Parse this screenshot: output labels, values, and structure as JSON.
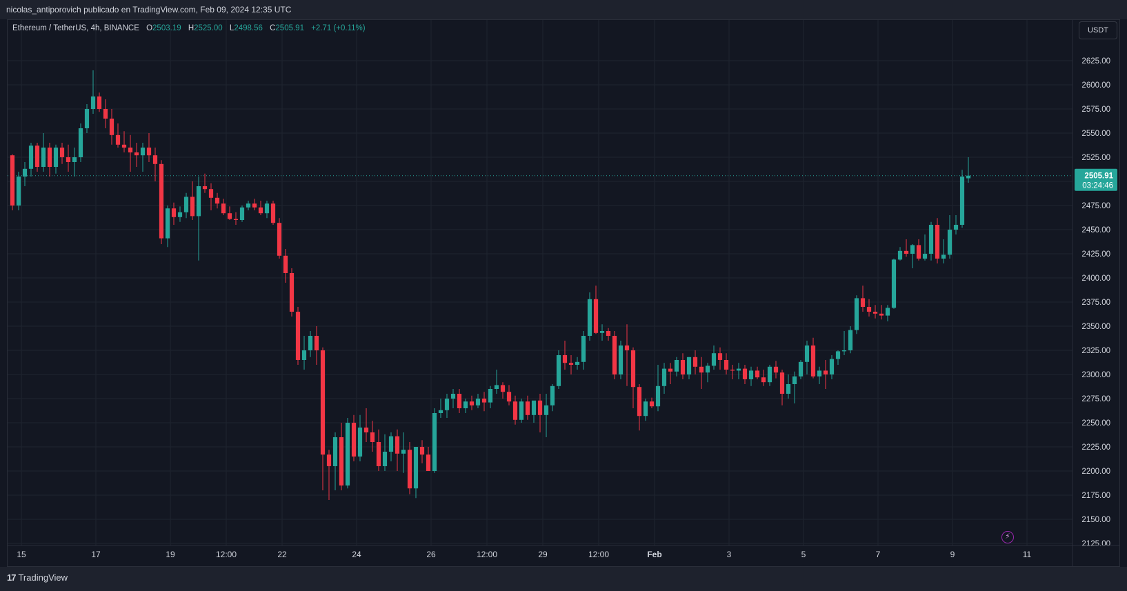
{
  "header": {
    "publisher_line": "nicolas_antiporovich publicado en TradingView.com, Feb 09, 2024 12:35 UTC"
  },
  "legend": {
    "symbol": "Ethereum / TetherUS, 4h, BINANCE",
    "o_label": "O",
    "o_value": "2503.19",
    "h_label": "H",
    "h_value": "2525.00",
    "l_label": "L",
    "l_value": "2498.56",
    "c_label": "C",
    "c_value": "2505.91",
    "change": "+2.71 (+0.11%)"
  },
  "currency_button": "USDT",
  "price_label": {
    "price": "2505.91",
    "countdown": "03:24:46"
  },
  "footer": {
    "brand": "TradingView",
    "logo_mark": "17"
  },
  "colors": {
    "up": "#26a69a",
    "down": "#f23645",
    "background": "#131722",
    "grid": "#1f2430",
    "text": "#d1d4dc"
  },
  "chart_data": {
    "type": "candlestick",
    "symbol": "Ethereum / TetherUS",
    "interval": "4h",
    "exchange": "BINANCE",
    "ylim": [
      2125,
      2650
    ],
    "y_ticks": [
      "2625.00",
      "2600.00",
      "2575.00",
      "2550.00",
      "2525.00",
      "2500.00",
      "2475.00",
      "2450.00",
      "2425.00",
      "2400.00",
      "2375.00",
      "2350.00",
      "2325.00",
      "2300.00",
      "2275.00",
      "2250.00",
      "2225.00",
      "2200.00",
      "2175.00",
      "2150.00",
      "2125.00"
    ],
    "x_ticks": [
      {
        "label": "15",
        "i": 1
      },
      {
        "label": "17",
        "i": 13
      },
      {
        "label": "19",
        "i": 25
      },
      {
        "label": "12:00",
        "i": 34
      },
      {
        "label": "22",
        "i": 43
      },
      {
        "label": "24",
        "i": 55
      },
      {
        "label": "26",
        "i": 67
      },
      {
        "label": "12:00",
        "i": 76
      },
      {
        "label": "29",
        "i": 85
      },
      {
        "label": "12:00",
        "i": 94
      },
      {
        "label": "Feb",
        "i": 103
      },
      {
        "label": "3",
        "i": 115
      },
      {
        "label": "5",
        "i": 127
      },
      {
        "label": "7",
        "i": 139
      },
      {
        "label": "9",
        "i": 151
      },
      {
        "label": "11",
        "i": 163
      }
    ],
    "last_price": 2505.91,
    "candles": [
      [
        2527,
        2528,
        2470,
        2475
      ],
      [
        2475,
        2510,
        2470,
        2505
      ],
      [
        2505,
        2520,
        2495,
        2513
      ],
      [
        2513,
        2540,
        2505,
        2537
      ],
      [
        2537,
        2540,
        2510,
        2515
      ],
      [
        2515,
        2550,
        2510,
        2535
      ],
      [
        2535,
        2540,
        2505,
        2515
      ],
      [
        2515,
        2538,
        2508,
        2535
      ],
      [
        2535,
        2540,
        2518,
        2525
      ],
      [
        2525,
        2538,
        2510,
        2520
      ],
      [
        2520,
        2535,
        2505,
        2525
      ],
      [
        2525,
        2560,
        2520,
        2555
      ],
      [
        2555,
        2580,
        2550,
        2575
      ],
      [
        2575,
        2615,
        2570,
        2588
      ],
      [
        2588,
        2592,
        2572,
        2575
      ],
      [
        2575,
        2585,
        2555,
        2565
      ],
      [
        2565,
        2575,
        2538,
        2548
      ],
      [
        2548,
        2560,
        2535,
        2538
      ],
      [
        2538,
        2552,
        2530,
        2535
      ],
      [
        2535,
        2548,
        2510,
        2530
      ],
      [
        2530,
        2540,
        2515,
        2527
      ],
      [
        2527,
        2540,
        2510,
        2535
      ],
      [
        2535,
        2550,
        2520,
        2527
      ],
      [
        2527,
        2535,
        2500,
        2518
      ],
      [
        2518,
        2522,
        2435,
        2441
      ],
      [
        2441,
        2475,
        2432,
        2472
      ],
      [
        2472,
        2478,
        2455,
        2463
      ],
      [
        2463,
        2474,
        2458,
        2468
      ],
      [
        2468,
        2488,
        2462,
        2484
      ],
      [
        2484,
        2500,
        2460,
        2464
      ],
      [
        2464,
        2505,
        2418,
        2495
      ],
      [
        2495,
        2508,
        2488,
        2492
      ],
      [
        2492,
        2498,
        2470,
        2483
      ],
      [
        2483,
        2488,
        2472,
        2477
      ],
      [
        2477,
        2482,
        2465,
        2467
      ],
      [
        2467,
        2474,
        2460,
        2461
      ],
      [
        2461,
        2468,
        2455,
        2460
      ],
      [
        2460,
        2475,
        2458,
        2473
      ],
      [
        2473,
        2480,
        2470,
        2477
      ],
      [
        2477,
        2482,
        2470,
        2473
      ],
      [
        2473,
        2480,
        2465,
        2467
      ],
      [
        2467,
        2480,
        2462,
        2477
      ],
      [
        2477,
        2480,
        2455,
        2457
      ],
      [
        2457,
        2462,
        2420,
        2423
      ],
      [
        2423,
        2430,
        2395,
        2405
      ],
      [
        2405,
        2410,
        2360,
        2365
      ],
      [
        2365,
        2370,
        2310,
        2315
      ],
      [
        2315,
        2340,
        2305,
        2325
      ],
      [
        2325,
        2345,
        2318,
        2340
      ],
      [
        2340,
        2350,
        2310,
        2325
      ],
      [
        2325,
        2328,
        2180,
        2217
      ],
      [
        2217,
        2222,
        2170,
        2205
      ],
      [
        2205,
        2240,
        2180,
        2235
      ],
      [
        2235,
        2250,
        2180,
        2185
      ],
      [
        2185,
        2255,
        2182,
        2250
      ],
      [
        2250,
        2258,
        2210,
        2215
      ],
      [
        2215,
        2258,
        2210,
        2245
      ],
      [
        2245,
        2265,
        2230,
        2240
      ],
      [
        2240,
        2252,
        2220,
        2230
      ],
      [
        2230,
        2243,
        2200,
        2205
      ],
      [
        2205,
        2238,
        2200,
        2220
      ],
      [
        2220,
        2240,
        2210,
        2236
      ],
      [
        2236,
        2243,
        2200,
        2218
      ],
      [
        2218,
        2240,
        2198,
        2222
      ],
      [
        2222,
        2230,
        2176,
        2182
      ],
      [
        2182,
        2225,
        2172,
        2225
      ],
      [
        2225,
        2232,
        2208,
        2217
      ],
      [
        2217,
        2225,
        2200,
        2200
      ],
      [
        2200,
        2265,
        2198,
        2260
      ],
      [
        2260,
        2275,
        2255,
        2263
      ],
      [
        2263,
        2280,
        2255,
        2275
      ],
      [
        2275,
        2285,
        2265,
        2280
      ],
      [
        2280,
        2285,
        2260,
        2265
      ],
      [
        2265,
        2275,
        2260,
        2272
      ],
      [
        2272,
        2278,
        2263,
        2268
      ],
      [
        2268,
        2280,
        2265,
        2275
      ],
      [
        2275,
        2282,
        2262,
        2271
      ],
      [
        2271,
        2288,
        2265,
        2285
      ],
      [
        2285,
        2305,
        2280,
        2289
      ],
      [
        2289,
        2292,
        2275,
        2282
      ],
      [
        2282,
        2289,
        2268,
        2272
      ],
      [
        2272,
        2278,
        2248,
        2253
      ],
      [
        2253,
        2275,
        2250,
        2272
      ],
      [
        2272,
        2278,
        2253,
        2258
      ],
      [
        2258,
        2272,
        2250,
        2273
      ],
      [
        2273,
        2280,
        2240,
        2258
      ],
      [
        2258,
        2280,
        2235,
        2268
      ],
      [
        2268,
        2290,
        2262,
        2288
      ],
      [
        2288,
        2325,
        2285,
        2320
      ],
      [
        2320,
        2335,
        2305,
        2312
      ],
      [
        2312,
        2320,
        2300,
        2310
      ],
      [
        2310,
        2318,
        2305,
        2313
      ],
      [
        2313,
        2345,
        2305,
        2340
      ],
      [
        2340,
        2385,
        2335,
        2378
      ],
      [
        2378,
        2392,
        2342,
        2343
      ],
      [
        2343,
        2352,
        2335,
        2345
      ],
      [
        2345,
        2348,
        2335,
        2340
      ],
      [
        2340,
        2345,
        2295,
        2300
      ],
      [
        2300,
        2335,
        2295,
        2330
      ],
      [
        2330,
        2352,
        2288,
        2325
      ],
      [
        2325,
        2328,
        2265,
        2287
      ],
      [
        2287,
        2290,
        2242,
        2257
      ],
      [
        2257,
        2275,
        2252,
        2272
      ],
      [
        2272,
        2276,
        2265,
        2267
      ],
      [
        2267,
        2310,
        2262,
        2288
      ],
      [
        2288,
        2312,
        2280,
        2306
      ],
      [
        2306,
        2312,
        2290,
        2303
      ],
      [
        2303,
        2318,
        2298,
        2315
      ],
      [
        2315,
        2322,
        2295,
        2300
      ],
      [
        2300,
        2318,
        2295,
        2318
      ],
      [
        2318,
        2325,
        2300,
        2308
      ],
      [
        2308,
        2318,
        2285,
        2302
      ],
      [
        2302,
        2312,
        2292,
        2309
      ],
      [
        2309,
        2330,
        2305,
        2322
      ],
      [
        2322,
        2328,
        2305,
        2315
      ],
      [
        2315,
        2322,
        2300,
        2305
      ],
      [
        2305,
        2310,
        2295,
        2304
      ],
      [
        2304,
        2312,
        2295,
        2306
      ],
      [
        2306,
        2310,
        2290,
        2295
      ],
      [
        2295,
        2308,
        2288,
        2304
      ],
      [
        2304,
        2308,
        2295,
        2297
      ],
      [
        2297,
        2305,
        2288,
        2292
      ],
      [
        2292,
        2310,
        2288,
        2308
      ],
      [
        2308,
        2314,
        2296,
        2302
      ],
      [
        2302,
        2305,
        2268,
        2280
      ],
      [
        2280,
        2300,
        2275,
        2290
      ],
      [
        2290,
        2303,
        2270,
        2298
      ],
      [
        2298,
        2315,
        2295,
        2313
      ],
      [
        2313,
        2335,
        2300,
        2330
      ],
      [
        2330,
        2338,
        2296,
        2298
      ],
      [
        2298,
        2308,
        2290,
        2304
      ],
      [
        2304,
        2315,
        2285,
        2300
      ],
      [
        2300,
        2320,
        2295,
        2316
      ],
      [
        2316,
        2325,
        2310,
        2324
      ],
      [
        2324,
        2345,
        2320,
        2325
      ],
      [
        2325,
        2350,
        2322,
        2346
      ],
      [
        2346,
        2382,
        2342,
        2379
      ],
      [
        2379,
        2392,
        2365,
        2370
      ],
      [
        2370,
        2378,
        2360,
        2365
      ],
      [
        2365,
        2372,
        2358,
        2363
      ],
      [
        2363,
        2372,
        2357,
        2361
      ],
      [
        2361,
        2372,
        2355,
        2369
      ],
      [
        2369,
        2420,
        2368,
        2419
      ],
      [
        2419,
        2432,
        2418,
        2428
      ],
      [
        2428,
        2440,
        2422,
        2425
      ],
      [
        2425,
        2435,
        2410,
        2434
      ],
      [
        2434,
        2440,
        2418,
        2420
      ],
      [
        2420,
        2445,
        2418,
        2425
      ],
      [
        2425,
        2458,
        2418,
        2455
      ],
      [
        2455,
        2462,
        2415,
        2420
      ],
      [
        2420,
        2440,
        2415,
        2424
      ],
      [
        2424,
        2465,
        2420,
        2450
      ],
      [
        2450,
        2465,
        2445,
        2455
      ],
      [
        2455,
        2512,
        2452,
        2505
      ],
      [
        2503.19,
        2525,
        2498.56,
        2505.91
      ]
    ]
  }
}
